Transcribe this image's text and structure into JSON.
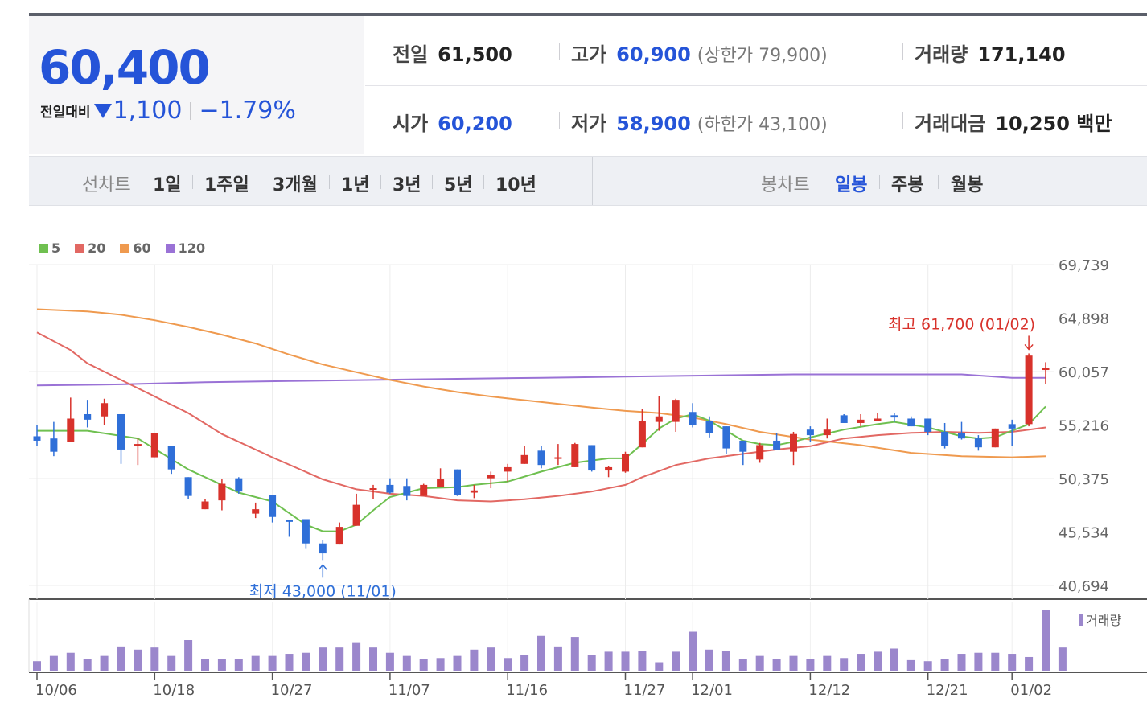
{
  "summary": {
    "price": "60,400",
    "change_label": "전일대비",
    "change_amount": "1,100",
    "change_pct": "−1.79%",
    "stats": [
      {
        "label": "전일",
        "value": "61,500"
      },
      {
        "label": "고가",
        "value": "60,900",
        "sub_label": "(상한가",
        "sub_value": "79,900)"
      },
      {
        "label": "거래량",
        "value": "171,140"
      },
      {
        "label": "시가",
        "value": "60,200"
      },
      {
        "label": "저가",
        "value": "58,900",
        "sub_label": "(하한가",
        "sub_value": "43,100)"
      },
      {
        "label": "거래대금",
        "value": "10,250 백만"
      }
    ]
  },
  "toolbar": {
    "line_chart_label": "선차트",
    "periods": [
      "1일",
      "1주일",
      "3개월",
      "1년",
      "3년",
      "5년",
      "10년"
    ],
    "candle_chart_label": "봉차트",
    "candle_periods": [
      "일봉",
      "주봉",
      "월봉"
    ],
    "active_candle_period": "일봉"
  },
  "colors": {
    "up": "#d8322b",
    "down": "#2f6fd8",
    "ma5": "#6fc050",
    "ma20": "#e26863",
    "ma60": "#ef9a4f",
    "ma120": "#9a72d6",
    "volume": "#9b87cc",
    "price_blue": "#2554d8"
  },
  "chart_data": {
    "type": "candlestick",
    "legend": [
      {
        "label": "5",
        "color": "#6fc050"
      },
      {
        "label": "20",
        "color": "#e26863"
      },
      {
        "label": "60",
        "color": "#ef9a4f"
      },
      {
        "label": "120",
        "color": "#9a72d6"
      }
    ],
    "y_ticks": [
      "69,739",
      "64,898",
      "60,057",
      "55,216",
      "50,375",
      "45,534",
      "40,694"
    ],
    "ylim": [
      40694,
      69739
    ],
    "x_tick_labels": [
      "10/06",
      "10/18",
      "10/27",
      "11/07",
      "11/16",
      "11/27",
      "12/01",
      "12/12",
      "12/21",
      "01/02"
    ],
    "x_tick_index": [
      0,
      7,
      14,
      21,
      28,
      35,
      39,
      46,
      53,
      58
    ],
    "high_annotation": "최고 61,700 (01/02)",
    "low_annotation": "최저 43,000 (11/01)",
    "volume_label": "거래량",
    "candles": [
      {
        "o": 54200,
        "h": 55200,
        "l": 53300,
        "c": 53800
      },
      {
        "o": 54000,
        "h": 55500,
        "l": 52400,
        "c": 52800
      },
      {
        "o": 53700,
        "h": 57700,
        "l": 53700,
        "c": 55800
      },
      {
        "o": 56200,
        "h": 57500,
        "l": 55000,
        "c": 55700
      },
      {
        "o": 56000,
        "h": 57600,
        "l": 55200,
        "c": 57200
      },
      {
        "o": 56200,
        "h": 56200,
        "l": 51700,
        "c": 53000
      },
      {
        "o": 53500,
        "h": 54000,
        "l": 51600,
        "c": 53500
      },
      {
        "o": 52300,
        "h": 54500,
        "l": 52300,
        "c": 54500
      },
      {
        "o": 53300,
        "h": 53300,
        "l": 50800,
        "c": 51200
      },
      {
        "o": 50500,
        "h": 50500,
        "l": 48500,
        "c": 48800
      },
      {
        "o": 47600,
        "h": 48500,
        "l": 47600,
        "c": 48300
      },
      {
        "o": 48400,
        "h": 50300,
        "l": 47500,
        "c": 49900
      },
      {
        "o": 50400,
        "h": 50500,
        "l": 49000,
        "c": 49200
      },
      {
        "o": 47200,
        "h": 48200,
        "l": 46800,
        "c": 47600
      },
      {
        "o": 48900,
        "h": 48900,
        "l": 46400,
        "c": 46900
      },
      {
        "o": 46600,
        "h": 46600,
        "l": 45100,
        "c": 46500
      },
      {
        "o": 46700,
        "h": 46700,
        "l": 44000,
        "c": 44500
      },
      {
        "o": 44500,
        "h": 44800,
        "l": 43000,
        "c": 43600
      },
      {
        "o": 44400,
        "h": 46400,
        "l": 44400,
        "c": 46000
      },
      {
        "o": 46100,
        "h": 49000,
        "l": 46100,
        "c": 48000
      },
      {
        "o": 49500,
        "h": 49800,
        "l": 48500,
        "c": 49500
      },
      {
        "o": 49800,
        "h": 50400,
        "l": 49000,
        "c": 49100
      },
      {
        "o": 49700,
        "h": 50400,
        "l": 48400,
        "c": 48800
      },
      {
        "o": 48800,
        "h": 49900,
        "l": 48800,
        "c": 49800
      },
      {
        "o": 49600,
        "h": 51300,
        "l": 49600,
        "c": 50300
      },
      {
        "o": 51200,
        "h": 51200,
        "l": 48800,
        "c": 48900
      },
      {
        "o": 49100,
        "h": 49800,
        "l": 48600,
        "c": 49300
      },
      {
        "o": 50400,
        "h": 51000,
        "l": 49500,
        "c": 50700
      },
      {
        "o": 51000,
        "h": 51700,
        "l": 50100,
        "c": 51400
      },
      {
        "o": 51700,
        "h": 53300,
        "l": 51700,
        "c": 52500
      },
      {
        "o": 52900,
        "h": 53300,
        "l": 51300,
        "c": 51600
      },
      {
        "o": 52300,
        "h": 53500,
        "l": 51600,
        "c": 52300
      },
      {
        "o": 51400,
        "h": 53600,
        "l": 51400,
        "c": 53500
      },
      {
        "o": 53400,
        "h": 53400,
        "l": 51000,
        "c": 51100
      },
      {
        "o": 51100,
        "h": 51500,
        "l": 50500,
        "c": 51400
      },
      {
        "o": 51000,
        "h": 52800,
        "l": 50900,
        "c": 52600
      },
      {
        "o": 53200,
        "h": 56700,
        "l": 53200,
        "c": 55600
      },
      {
        "o": 55500,
        "h": 57800,
        "l": 54700,
        "c": 56000
      },
      {
        "o": 55500,
        "h": 57600,
        "l": 54600,
        "c": 57500
      },
      {
        "o": 56400,
        "h": 57200,
        "l": 55000,
        "c": 55200
      },
      {
        "o": 55600,
        "h": 56000,
        "l": 54100,
        "c": 54500
      },
      {
        "o": 55100,
        "h": 55100,
        "l": 52600,
        "c": 53100
      },
      {
        "o": 53800,
        "h": 53800,
        "l": 51600,
        "c": 52800
      },
      {
        "o": 52100,
        "h": 53600,
        "l": 51800,
        "c": 53400
      },
      {
        "o": 53800,
        "h": 54500,
        "l": 53200,
        "c": 53000
      },
      {
        "o": 52800,
        "h": 54600,
        "l": 51600,
        "c": 54400
      },
      {
        "o": 54800,
        "h": 55100,
        "l": 53700,
        "c": 54300
      },
      {
        "o": 54300,
        "h": 55800,
        "l": 54000,
        "c": 54800
      },
      {
        "o": 56100,
        "h": 56200,
        "l": 55400,
        "c": 55400
      },
      {
        "o": 55400,
        "h": 56200,
        "l": 55100,
        "c": 55700
      },
      {
        "o": 55600,
        "h": 56300,
        "l": 55600,
        "c": 55800
      },
      {
        "o": 56100,
        "h": 56300,
        "l": 55500,
        "c": 55900
      },
      {
        "o": 55800,
        "h": 56000,
        "l": 55100,
        "c": 55100
      },
      {
        "o": 55800,
        "h": 55800,
        "l": 54300,
        "c": 54600
      },
      {
        "o": 54600,
        "h": 55400,
        "l": 53100,
        "c": 53300
      },
      {
        "o": 54500,
        "h": 55500,
        "l": 53900,
        "c": 54000
      },
      {
        "o": 54000,
        "h": 54300,
        "l": 52900,
        "c": 53200
      },
      {
        "o": 53200,
        "h": 54900,
        "l": 53200,
        "c": 54900
      },
      {
        "o": 55300,
        "h": 55700,
        "l": 53300,
        "c": 54900
      },
      {
        "o": 55300,
        "h": 61700,
        "l": 55100,
        "c": 61500
      },
      {
        "o": 60200,
        "h": 60900,
        "l": 58900,
        "c": 60400
      }
    ],
    "volume": [
      9,
      14,
      17,
      11,
      14,
      23,
      20,
      22,
      14,
      29,
      11,
      11,
      11,
      14,
      14,
      16,
      17,
      22,
      22,
      27,
      22,
      17,
      14,
      11,
      12,
      14,
      20,
      22,
      12,
      15,
      33,
      23,
      32,
      15,
      18,
      18,
      19,
      8,
      18,
      37,
      20,
      19,
      11,
      14,
      11,
      14,
      11,
      14,
      12,
      16,
      18,
      21,
      10,
      9,
      11,
      16,
      17,
      17,
      16,
      13,
      58,
      22
    ],
    "ma": {
      "ma5": [
        [
          0,
          54700
        ],
        [
          3,
          54700
        ],
        [
          6,
          54000
        ],
        [
          9,
          51200
        ],
        [
          12,
          49100
        ],
        [
          14,
          48300
        ],
        [
          16,
          46200
        ],
        [
          17,
          45600
        ],
        [
          18,
          45600
        ],
        [
          19,
          46200
        ],
        [
          20,
          47500
        ],
        [
          21,
          48700
        ],
        [
          23,
          49500
        ],
        [
          25,
          49600
        ],
        [
          26,
          49800
        ],
        [
          28,
          50100
        ],
        [
          30,
          51000
        ],
        [
          32,
          51800
        ],
        [
          34,
          52200
        ],
        [
          35,
          52200
        ],
        [
          36,
          53500
        ],
        [
          37,
          54900
        ],
        [
          38,
          55800
        ],
        [
          39,
          56200
        ],
        [
          40,
          55600
        ],
        [
          41,
          54700
        ],
        [
          42,
          53800
        ],
        [
          43,
          53500
        ],
        [
          44,
          53400
        ],
        [
          45,
          53700
        ],
        [
          46,
          54100
        ],
        [
          48,
          54800
        ],
        [
          50,
          55300
        ],
        [
          51,
          55500
        ],
        [
          53,
          55000
        ],
        [
          54,
          54600
        ],
        [
          55,
          54200
        ],
        [
          56,
          54000
        ],
        [
          57,
          54100
        ],
        [
          59,
          55300
        ],
        [
          60,
          56900
        ]
      ],
      "ma20": [
        [
          0,
          63600
        ],
        [
          2,
          62000
        ],
        [
          3,
          60800
        ],
        [
          5,
          59300
        ],
        [
          7,
          57800
        ],
        [
          9,
          56300
        ],
        [
          11,
          54400
        ],
        [
          14,
          52300
        ],
        [
          17,
          50300
        ],
        [
          19,
          49400
        ],
        [
          21,
          49000
        ],
        [
          23,
          48800
        ],
        [
          25,
          48400
        ],
        [
          27,
          48300
        ],
        [
          29,
          48500
        ],
        [
          31,
          48800
        ],
        [
          33,
          49200
        ],
        [
          35,
          49800
        ],
        [
          36,
          50500
        ],
        [
          38,
          51600
        ],
        [
          40,
          52200
        ],
        [
          42,
          52600
        ],
        [
          44,
          53000
        ],
        [
          46,
          53300
        ],
        [
          48,
          54000
        ],
        [
          50,
          54300
        ],
        [
          52,
          54500
        ],
        [
          54,
          54600
        ],
        [
          56,
          54500
        ],
        [
          58,
          54600
        ],
        [
          60,
          55000
        ]
      ],
      "ma60": [
        [
          0,
          65700
        ],
        [
          3,
          65500
        ],
        [
          5,
          65200
        ],
        [
          7,
          64700
        ],
        [
          9,
          64100
        ],
        [
          11,
          63400
        ],
        [
          13,
          62600
        ],
        [
          15,
          61600
        ],
        [
          17,
          60700
        ],
        [
          19,
          60000
        ],
        [
          21,
          59300
        ],
        [
          23,
          58700
        ],
        [
          25,
          58200
        ],
        [
          27,
          57800
        ],
        [
          30,
          57300
        ],
        [
          33,
          56800
        ],
        [
          35,
          56500
        ],
        [
          37,
          56300
        ],
        [
          39,
          55900
        ],
        [
          41,
          55300
        ],
        [
          43,
          54600
        ],
        [
          46,
          53900
        ],
        [
          49,
          53400
        ],
        [
          52,
          52700
        ],
        [
          55,
          52400
        ],
        [
          58,
          52300
        ],
        [
          60,
          52400
        ]
      ],
      "ma120": [
        [
          0,
          58800
        ],
        [
          5,
          58900
        ],
        [
          10,
          59100
        ],
        [
          15,
          59200
        ],
        [
          20,
          59300
        ],
        [
          25,
          59400
        ],
        [
          30,
          59500
        ],
        [
          35,
          59600
        ],
        [
          40,
          59700
        ],
        [
          45,
          59800
        ],
        [
          50,
          59800
        ],
        [
          55,
          59800
        ],
        [
          58,
          59500
        ],
        [
          60,
          59500
        ]
      ]
    }
  }
}
